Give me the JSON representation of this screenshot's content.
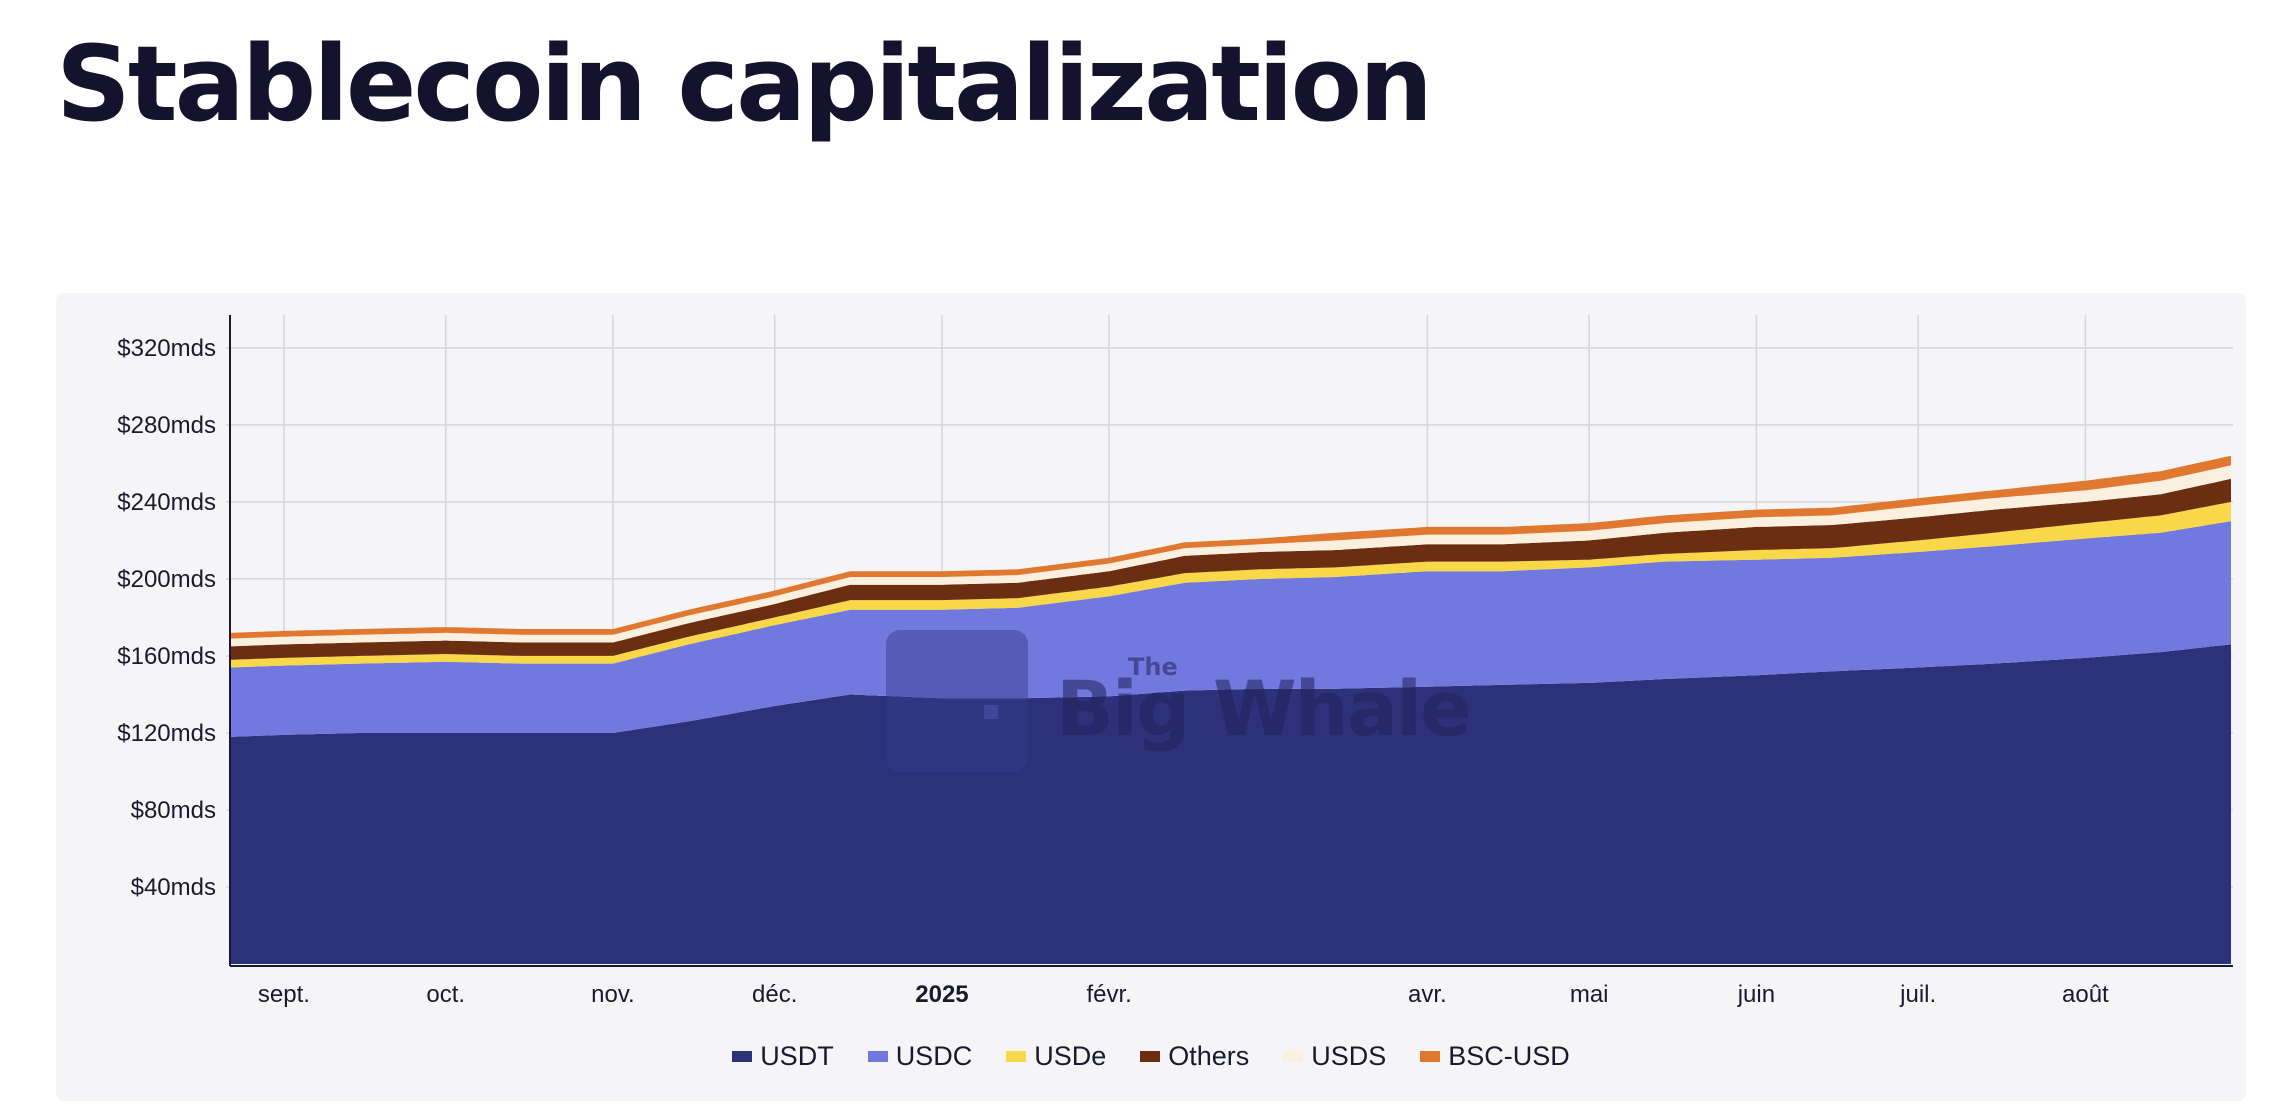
{
  "page": {
    "title": "Stablecoin capitalization"
  },
  "chart_data": {
    "type": "area",
    "stacked": true,
    "title": "Stablecoin capitalization",
    "xlabel": "",
    "ylabel": "",
    "x": [
      "2024-08-22",
      "2024-09-01",
      "2024-09-15",
      "2024-10-01",
      "2024-10-15",
      "2024-11-01",
      "2024-11-15",
      "2024-12-01",
      "2024-12-15",
      "2025-01-01",
      "2025-01-15",
      "2025-02-01",
      "2025-02-15",
      "2025-03-01",
      "2025-03-15",
      "2025-04-01",
      "2025-04-15",
      "2025-05-01",
      "2025-05-15",
      "2025-06-01",
      "2025-06-15",
      "2025-07-01",
      "2025-07-15",
      "2025-08-01",
      "2025-08-15",
      "2025-08-28"
    ],
    "x_ticks": [
      {
        "date": "2024-09-01",
        "label": "sept.",
        "bold": false
      },
      {
        "date": "2024-10-01",
        "label": "oct.",
        "bold": false
      },
      {
        "date": "2024-11-01",
        "label": "nov.",
        "bold": false
      },
      {
        "date": "2024-12-01",
        "label": "déc.",
        "bold": false
      },
      {
        "date": "2025-01-01",
        "label": "2025",
        "bold": true
      },
      {
        "date": "2025-02-01",
        "label": "févr.",
        "bold": false
      },
      {
        "date": "2025-04-01",
        "label": "avr.",
        "bold": false
      },
      {
        "date": "2025-05-01",
        "label": "mai",
        "bold": false
      },
      {
        "date": "2025-06-01",
        "label": "juin",
        "bold": false
      },
      {
        "date": "2025-07-01",
        "label": "juil.",
        "bold": false
      },
      {
        "date": "2025-08-01",
        "label": "août",
        "bold": false
      }
    ],
    "y_ticks": [
      {
        "value": 40,
        "label": "$40mds"
      },
      {
        "value": 80,
        "label": "$80mds"
      },
      {
        "value": 120,
        "label": "$120mds"
      },
      {
        "value": 160,
        "label": "$160mds"
      },
      {
        "value": 200,
        "label": "$200mds"
      },
      {
        "value": 240,
        "label": "$240mds"
      },
      {
        "value": 280,
        "label": "$280mds"
      },
      {
        "value": 320,
        "label": "$320mds"
      }
    ],
    "ylim": [
      0,
      335
    ],
    "grid": true,
    "legend_position": "bottom-center",
    "series": [
      {
        "name": "USDT",
        "color": "#2c317a",
        "values": [
          118,
          119,
          120,
          120,
          120,
          120,
          126,
          134,
          140,
          138,
          138,
          139,
          142,
          143,
          143,
          144,
          145,
          146,
          148,
          150,
          152,
          154,
          156,
          159,
          162,
          166
        ]
      },
      {
        "name": "USDC",
        "color": "#7179de",
        "values": [
          36,
          36,
          36,
          37,
          36,
          36,
          40,
          42,
          44,
          46,
          47,
          52,
          56,
          57,
          58,
          60,
          59,
          60,
          61,
          60,
          59,
          60,
          61,
          62,
          62,
          64
        ]
      },
      {
        "name": "USDe",
        "color": "#f8d749",
        "values": [
          4,
          4,
          4,
          4,
          4,
          4,
          4,
          4,
          5,
          5,
          5,
          5,
          5,
          5,
          5,
          5,
          5,
          4,
          4,
          5,
          5,
          6,
          7,
          8,
          9,
          10
        ]
      },
      {
        "name": "Others",
        "color": "#6b2e10",
        "values": [
          7,
          7,
          7,
          7,
          7,
          7,
          7,
          7,
          8,
          8,
          8,
          8,
          9,
          9,
          9,
          9,
          9,
          10,
          11,
          12,
          12,
          12,
          12,
          11,
          11,
          12
        ]
      },
      {
        "name": "USDS",
        "color": "#fbefdf",
        "values": [
          4,
          4,
          4,
          4,
          4,
          4,
          4,
          4,
          4,
          4,
          4,
          4,
          4,
          4,
          5,
          5,
          5,
          5,
          5,
          5,
          5,
          6,
          6,
          6,
          7,
          7
        ]
      },
      {
        "name": "BSC-USD",
        "color": "#e07830",
        "values": [
          3,
          3,
          3,
          3,
          3,
          3,
          3,
          3,
          3,
          3,
          3,
          3,
          3,
          3,
          4,
          4,
          4,
          4,
          4,
          4,
          4,
          4,
          4,
          5,
          5,
          5
        ]
      }
    ]
  },
  "watermark": {
    "logo_text": "Big Whale",
    "logo_superscript": "The"
  }
}
